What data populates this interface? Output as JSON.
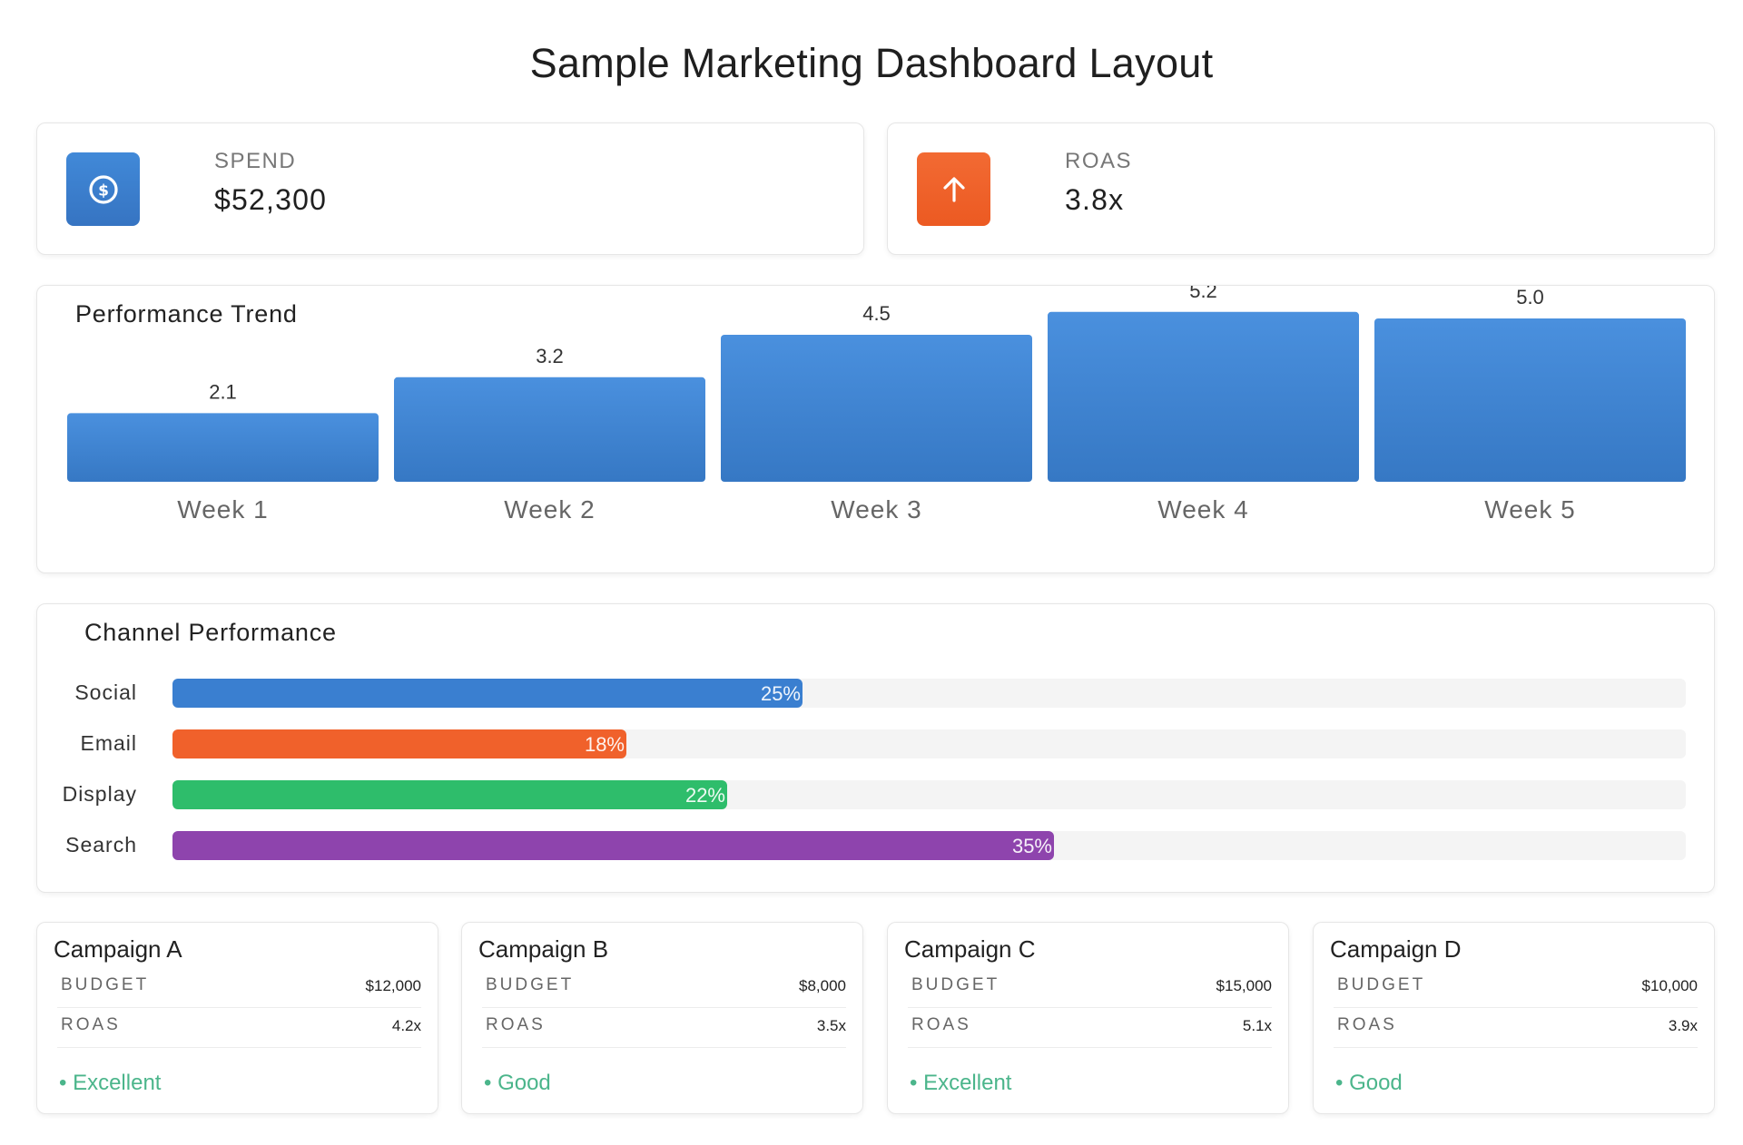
{
  "page": {
    "title": "Sample Marketing Dashboard Layout"
  },
  "kpis": [
    {
      "label": "SPEND",
      "value": "$52,300",
      "icon": "dollar-circle-icon",
      "color": "#3a7fd0"
    },
    {
      "label": "ROAS",
      "value": "3.8x",
      "icon": "arrow-up-icon",
      "color": "#f0612b"
    }
  ],
  "trend": {
    "title": "Performance Trend"
  },
  "chart_data": {
    "type": "bar",
    "title": "Performance Trend",
    "categories": [
      "Week 1",
      "Week 2",
      "Week 3",
      "Week 4",
      "Week 5"
    ],
    "values": [
      2.1,
      3.2,
      4.5,
      5.2,
      5.0
    ],
    "value_labels": [
      "2.1",
      "3.2",
      "4.5",
      "5.2",
      "5.0"
    ],
    "ylim": [
      0,
      6
    ],
    "color": "#4189d8",
    "grid": false
  },
  "channels": {
    "title": "Channel Performance",
    "items": [
      {
        "label": "Social",
        "percent": 25,
        "pct_text": "25%",
        "color": "#3a7fd0"
      },
      {
        "label": "Email",
        "percent": 18,
        "pct_text": "18%",
        "color": "#f0612b"
      },
      {
        "label": "Display",
        "percent": 22,
        "pct_text": "22%",
        "color": "#2ebd6b"
      },
      {
        "label": "Search",
        "percent": 35,
        "pct_text": "35%",
        "color": "#8e44ad"
      }
    ]
  },
  "campaigns": [
    {
      "name": "Campaign A",
      "budget_label": "BUDGET",
      "budget": "$12,000",
      "roas_label": "ROAS",
      "roas": "4.2x",
      "status": "• Excellent"
    },
    {
      "name": "Campaign B",
      "budget_label": "BUDGET",
      "budget": "$8,000",
      "roas_label": "ROAS",
      "roas": "3.5x",
      "status": "• Good"
    },
    {
      "name": "Campaign C",
      "budget_label": "BUDGET",
      "budget": "$15,000",
      "roas_label": "ROAS",
      "roas": "5.1x",
      "status": "• Excellent"
    },
    {
      "name": "Campaign D",
      "budget_label": "BUDGET",
      "budget": "$10,000",
      "roas_label": "ROAS",
      "roas": "3.9x",
      "status": "• Good"
    }
  ]
}
